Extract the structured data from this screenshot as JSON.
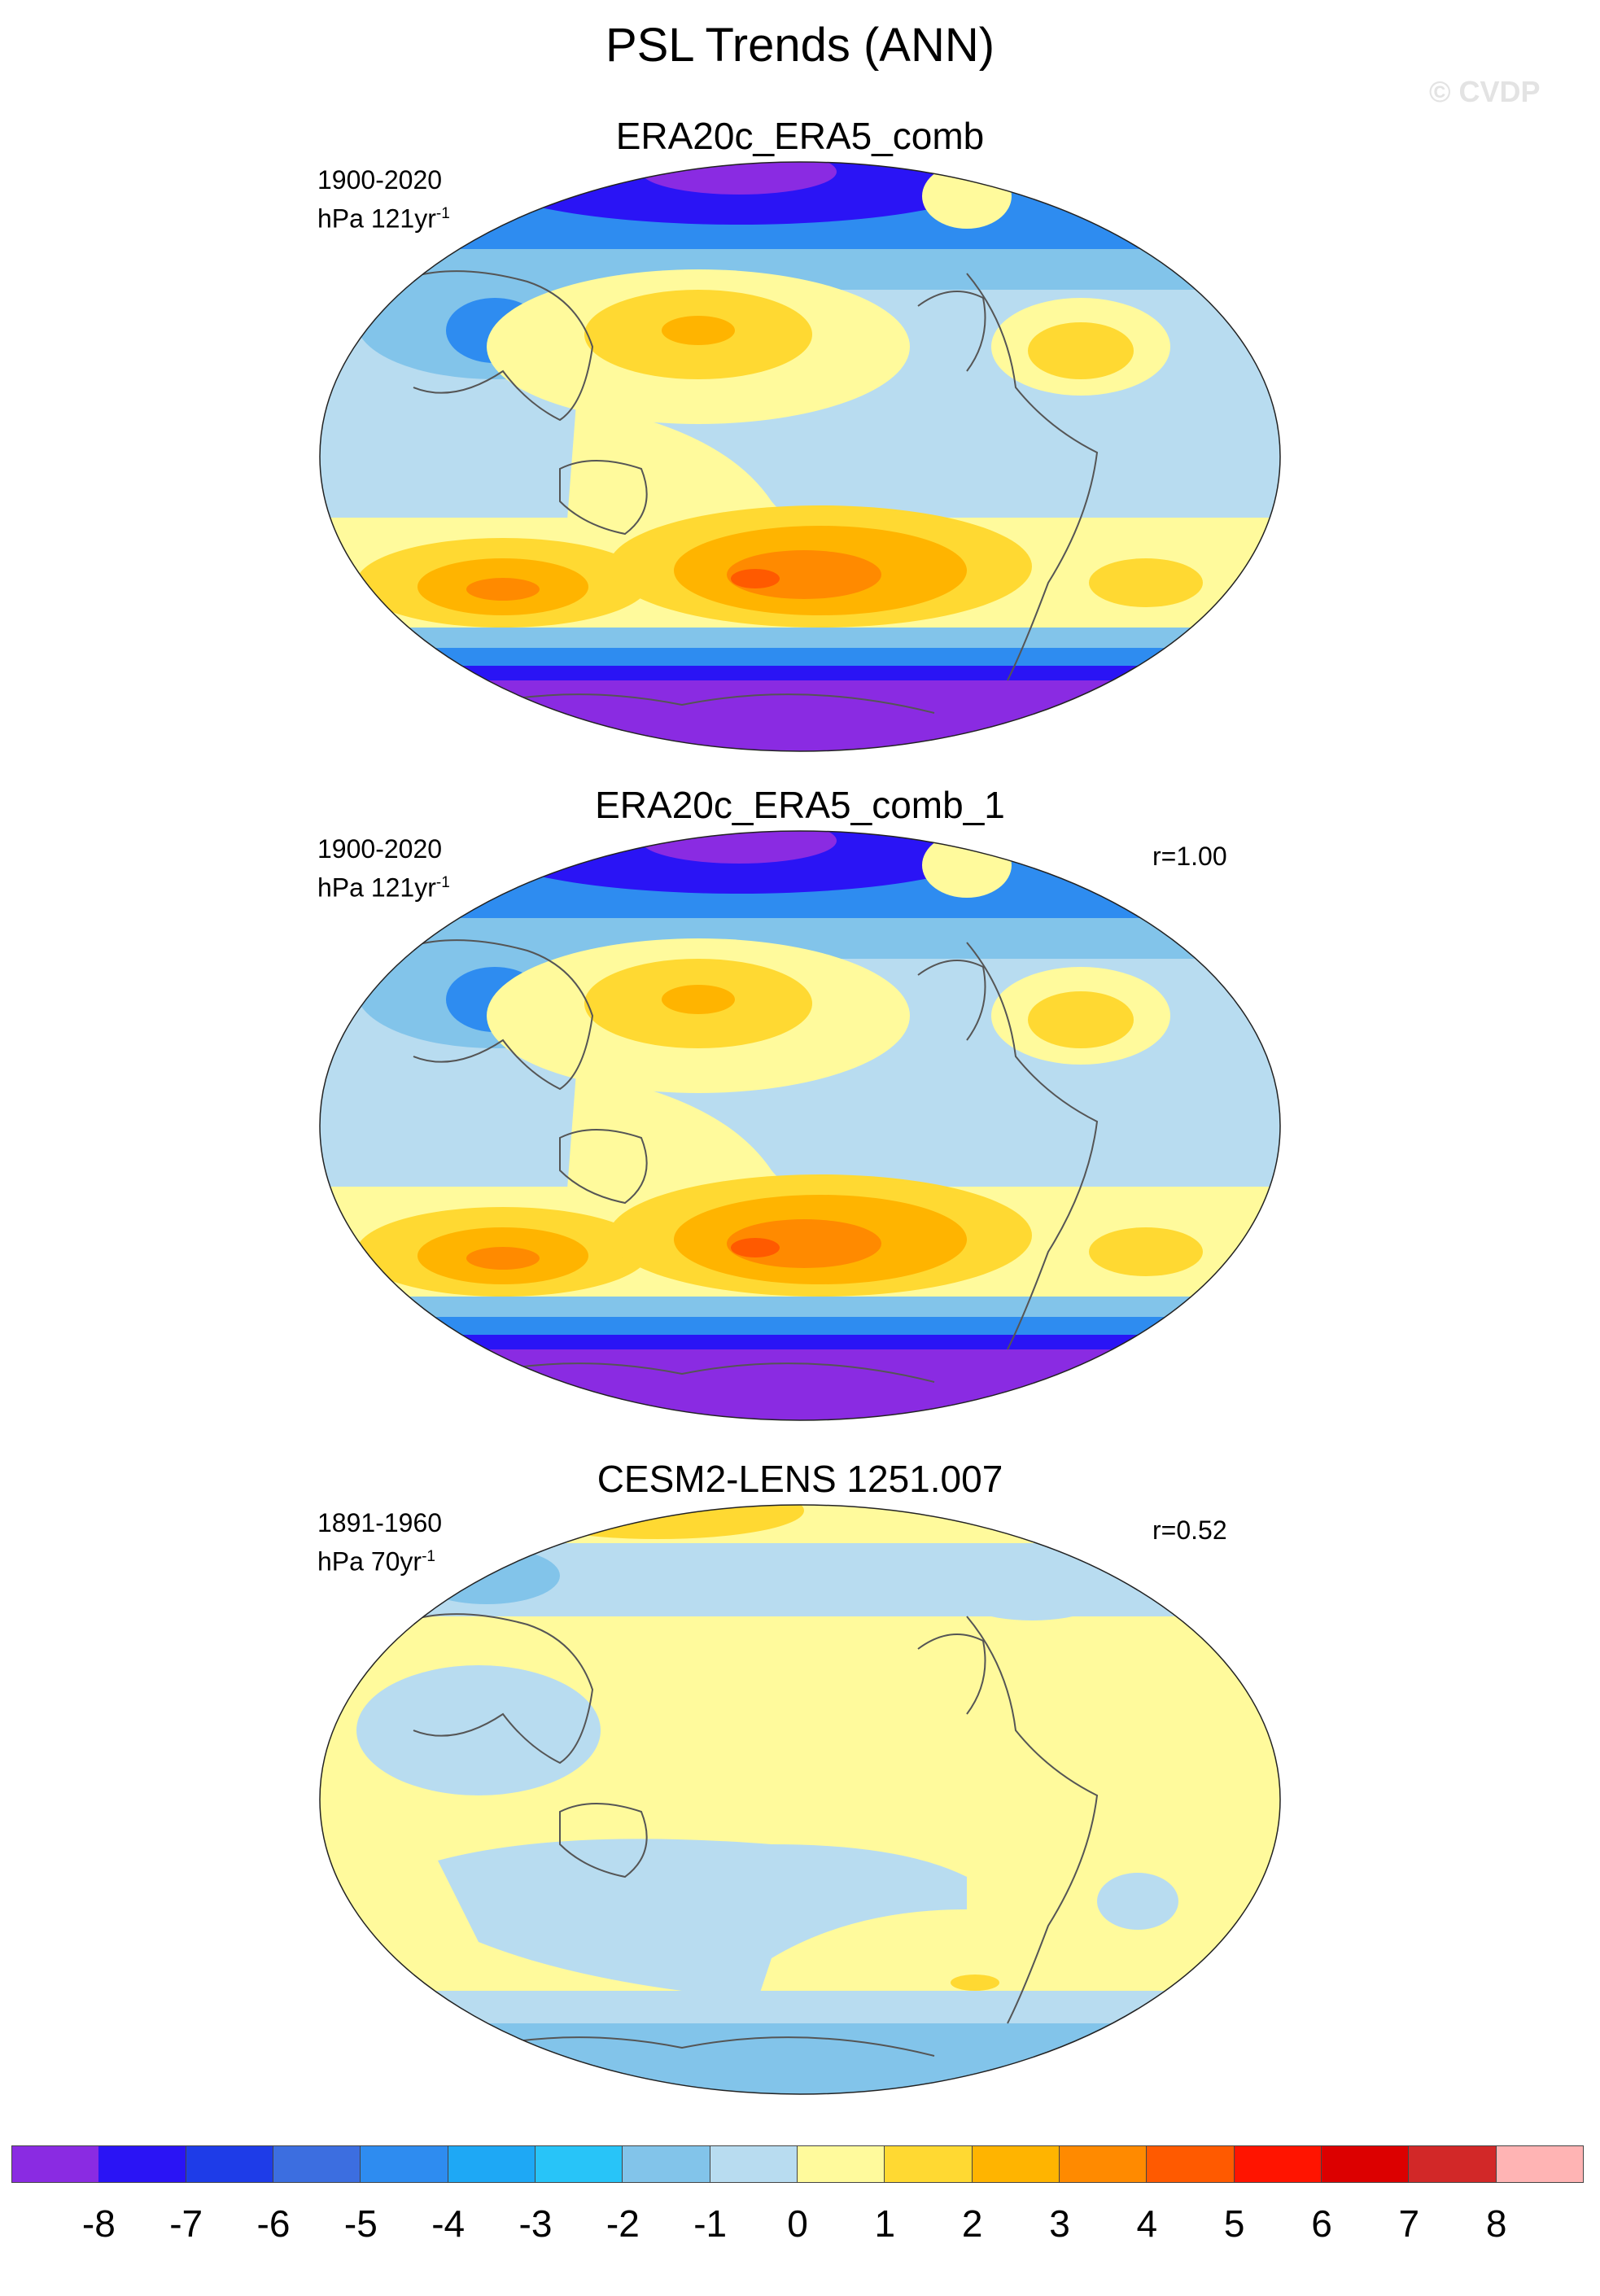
{
  "title": "PSL Trends (ANN)",
  "watermark": "© CVDP",
  "panels": [
    {
      "title": "ERA20c_ERA5_comb",
      "period": "1900-2020",
      "units_prefix": "hPa 121yr",
      "units_sup": "-1",
      "correlation": ""
    },
    {
      "title": "ERA20c_ERA5_comb_1",
      "period": "1900-2020",
      "units_prefix": "hPa 121yr",
      "units_sup": "-1",
      "correlation": "r=1.00"
    },
    {
      "title": "CESM2-LENS 1251.007",
      "period": "1891-1960",
      "units_prefix": "hPa 70yr",
      "units_sup": "-1",
      "correlation": "r=0.52"
    }
  ],
  "colorbar": {
    "labels": [
      "-8",
      "-7",
      "-6",
      "-5",
      "-4",
      "-3",
      "-2",
      "-1",
      "0",
      "1",
      "2",
      "3",
      "4",
      "5",
      "6",
      "7",
      "8"
    ],
    "colors": [
      "#8a2be2",
      "#2a14f5",
      "#1e3ce8",
      "#3c6ee0",
      "#2e8cf0",
      "#1ea8f5",
      "#28c4f8",
      "#82c4ea",
      "#b8dcf0",
      "#fffa9c",
      "#ffd932",
      "#ffb400",
      "#ff8a00",
      "#ff5a00",
      "#ff1400",
      "#dc0000",
      "#d22828",
      "#ffb4b4"
    ]
  },
  "map_colors": {
    "neg_strong": "#8a2be2",
    "neg_deep": "#2a14f5",
    "neg_mid": "#2e8cf0",
    "neg_light": "#82c4ea",
    "neg_faint": "#b8dcf0",
    "pos_faint": "#fffa9c",
    "pos_light": "#ffd932",
    "pos_mid": "#ffb400",
    "pos_strong": "#ff8a00",
    "pos_deep": "#ff5a00",
    "coast": "#555555"
  }
}
